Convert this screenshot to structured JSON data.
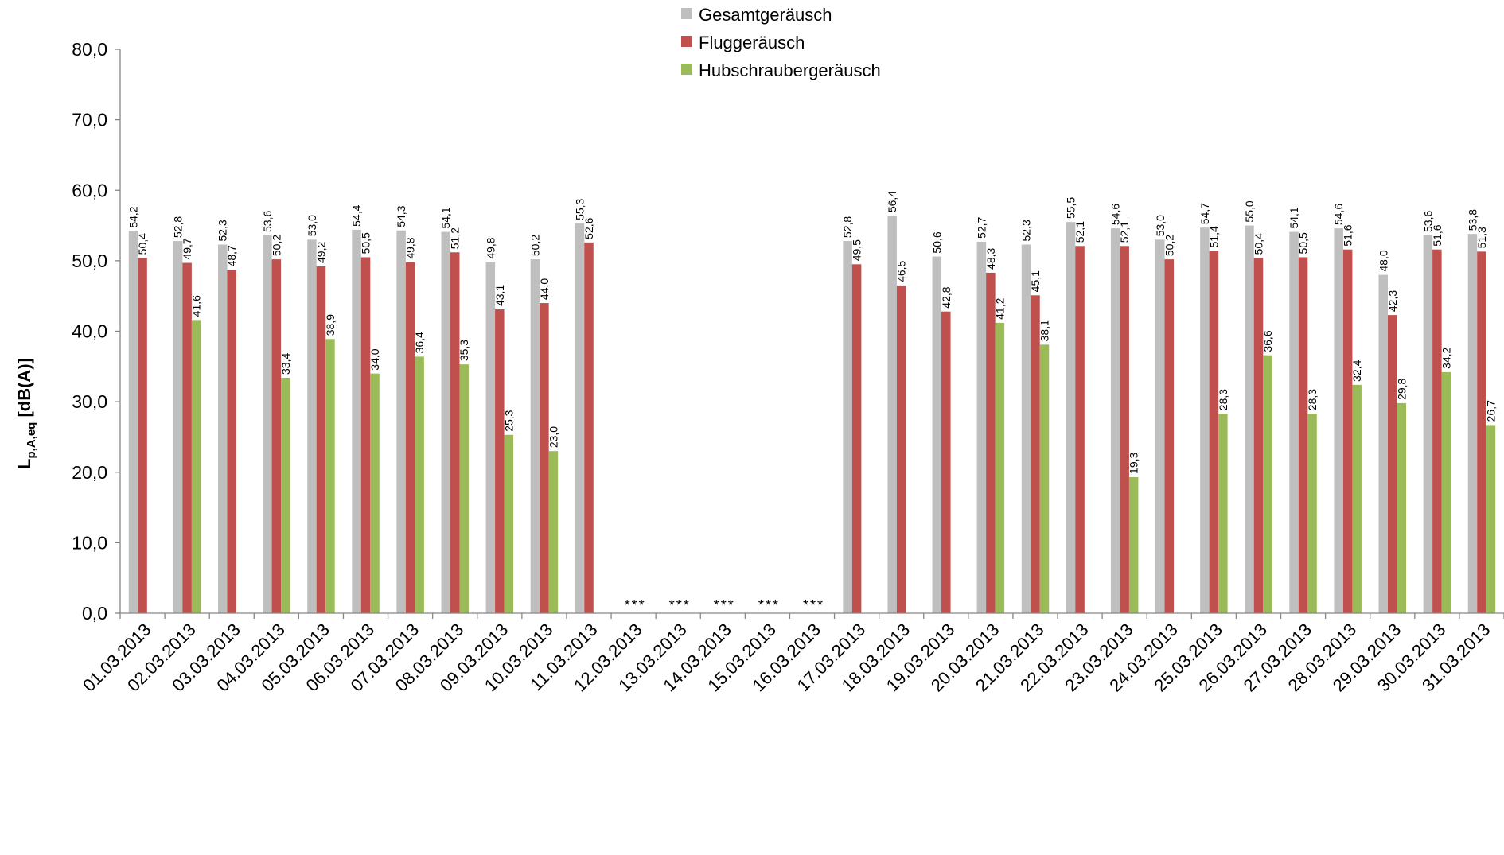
{
  "chart_data": {
    "type": "bar",
    "ylabel": {
      "main": "L",
      "sub": "p,A,eq",
      "unit": " [dB(A)]"
    },
    "ylim": [
      0,
      80
    ],
    "yticks": [
      "0,0",
      "10,0",
      "20,0",
      "30,0",
      "40,0",
      "50,0",
      "60,0",
      "70,0",
      "80,0"
    ],
    "legend_position": "top-center",
    "missing_marker": "***",
    "categories": [
      "01.03.2013",
      "02.03.2013",
      "03.03.2013",
      "04.03.2013",
      "05.03.2013",
      "06.03.2013",
      "07.03.2013",
      "08.03.2013",
      "09.03.2013",
      "10.03.2013",
      "11.03.2013",
      "12.03.2013",
      "13.03.2013",
      "14.03.2013",
      "15.03.2013",
      "16.03.2013",
      "17.03.2013",
      "18.03.2013",
      "19.03.2013",
      "20.03.2013",
      "21.03.2013",
      "22.03.2013",
      "23.03.2013",
      "24.03.2013",
      "25.03.2013",
      "26.03.2013",
      "27.03.2013",
      "28.03.2013",
      "29.03.2013",
      "30.03.2013",
      "31.03.2013"
    ],
    "series": [
      {
        "name": "Gesamtgeräusch",
        "color": "#bfbfbf",
        "values": [
          54.2,
          52.8,
          52.3,
          53.6,
          53.0,
          54.4,
          54.3,
          54.1,
          49.8,
          50.2,
          55.3,
          null,
          null,
          null,
          null,
          null,
          52.8,
          56.4,
          50.6,
          52.7,
          52.3,
          55.5,
          54.6,
          53.0,
          54.7,
          55.0,
          54.1,
          54.6,
          48.0,
          53.6,
          53.8
        ]
      },
      {
        "name": "Fluggeräusch",
        "color": "#c0504d",
        "values": [
          50.4,
          49.7,
          48.7,
          50.2,
          49.2,
          50.5,
          49.8,
          51.2,
          43.1,
          44.0,
          52.6,
          null,
          null,
          null,
          null,
          null,
          49.5,
          46.5,
          42.8,
          48.3,
          45.1,
          52.1,
          52.1,
          50.2,
          51.4,
          50.4,
          50.5,
          51.6,
          42.3,
          51.6,
          51.3
        ]
      },
      {
        "name": "Hubschraubergeräusch",
        "color": "#9bbb59",
        "values": [
          null,
          41.6,
          null,
          33.4,
          38.9,
          34.0,
          36.4,
          35.3,
          25.3,
          23.0,
          null,
          null,
          null,
          null,
          null,
          null,
          null,
          null,
          null,
          41.2,
          38.1,
          null,
          19.3,
          null,
          28.3,
          36.6,
          28.3,
          32.4,
          29.8,
          34.2,
          26.7
        ]
      }
    ]
  }
}
